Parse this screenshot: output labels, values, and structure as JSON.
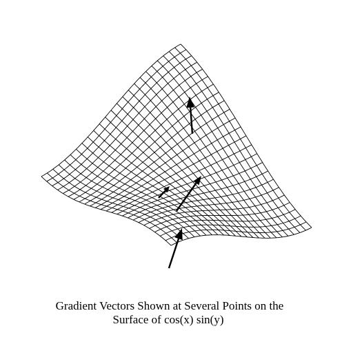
{
  "figure": {
    "surface": "cos(x) sin(y)",
    "mesh_color": "#000000",
    "arrow_color": "#000000",
    "background": "#ffffff"
  },
  "caption": {
    "line1": "Gradient Vectors Shown at Several Points on the",
    "line2": "Surface of cos(x) sin(y)"
  }
}
